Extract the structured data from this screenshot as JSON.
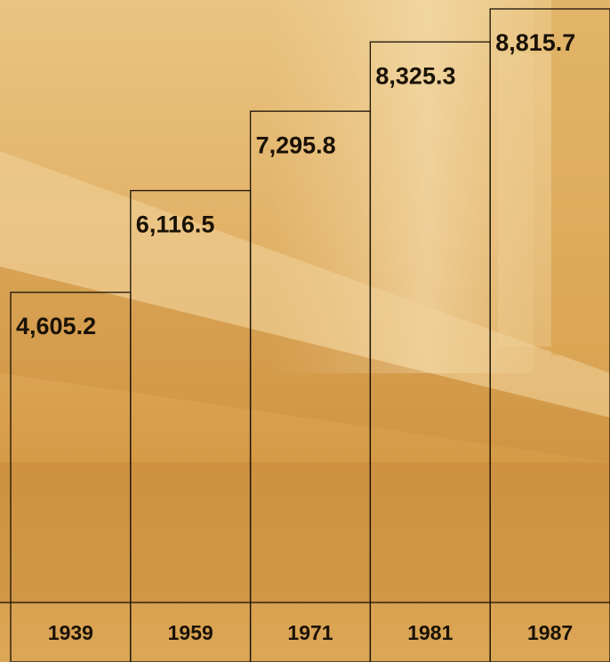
{
  "chart_data": {
    "type": "bar",
    "categories": [
      "1939",
      "1959",
      "1971",
      "1981",
      "1987"
    ],
    "values": [
      4605.2,
      6116.5,
      7295.8,
      8325.3,
      8815.7
    ],
    "value_labels": [
      "4,605.2",
      "6,116.5",
      "7,295.8",
      "8,325.3",
      "8,815.7"
    ],
    "color": "#1a1206"
  }
}
